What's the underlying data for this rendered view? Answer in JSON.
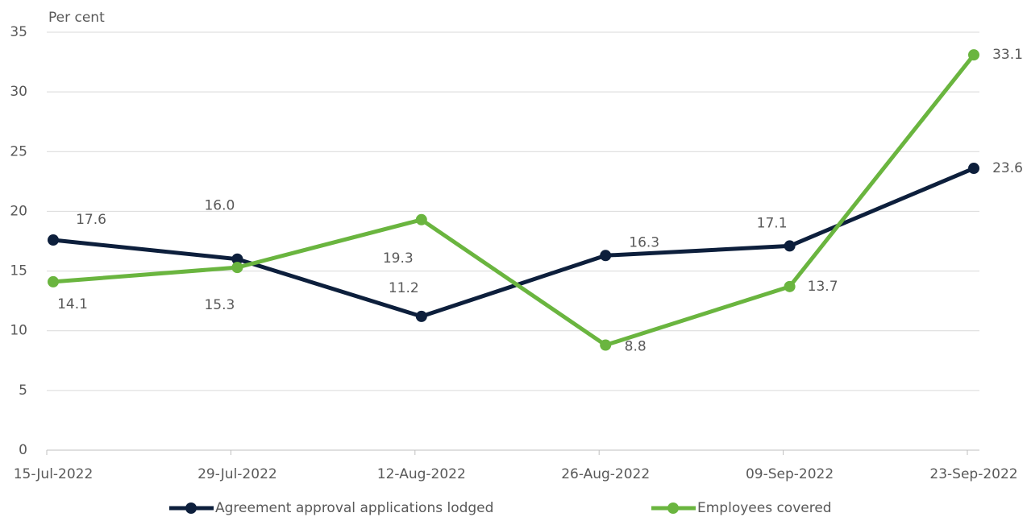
{
  "chart_data": {
    "type": "line",
    "y_axis_label": "Per cent",
    "categories": [
      "15-Jul-2022",
      "29-Jul-2022",
      "12-Aug-2022",
      "26-Aug-2022",
      "09-Sep-2022",
      "23-Sep-2022"
    ],
    "series": [
      {
        "name": "Agreement approval applications lodged",
        "color": "#0d1f3c",
        "values": [
          17.6,
          16.0,
          11.2,
          16.3,
          17.1,
          23.6
        ],
        "value_labels": [
          "17.6",
          "16.0",
          "11.2",
          "16.3",
          "17.1",
          "23.6"
        ]
      },
      {
        "name": "Employees covered",
        "color": "#6ab53f",
        "values": [
          14.1,
          15.3,
          19.3,
          8.8,
          13.7,
          33.1
        ],
        "value_labels": [
          "14.1",
          "15.3",
          "19.3",
          "8.8",
          "13.7",
          "33.1"
        ]
      }
    ],
    "ylim": [
      0,
      35
    ],
    "yticks": [
      0,
      5,
      10,
      15,
      20,
      25,
      30,
      35
    ],
    "grid": true,
    "legend": "bottom"
  }
}
